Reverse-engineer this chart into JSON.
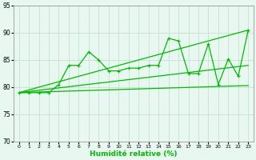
{
  "xlabel": "Humidité relative (%)",
  "bg_color": "#e8f8f0",
  "grid_color": "#bbddcc",
  "line_color": "#00bb00",
  "xlim": [
    -0.5,
    23.5
  ],
  "ylim": [
    70,
    95
  ],
  "yticks": [
    70,
    75,
    80,
    85,
    90,
    95
  ],
  "xticks": [
    0,
    1,
    2,
    3,
    4,
    5,
    6,
    7,
    8,
    9,
    10,
    11,
    12,
    13,
    14,
    15,
    16,
    17,
    18,
    19,
    20,
    21,
    22,
    23
  ],
  "line1_x": [
    0,
    1,
    2,
    3,
    4,
    5,
    6,
    7,
    8,
    9,
    10,
    11,
    12,
    13,
    14,
    15,
    16,
    17,
    18,
    19,
    20,
    21,
    22,
    23
  ],
  "line1_y": [
    79,
    79,
    79,
    79,
    80.5,
    84,
    84,
    86.5,
    85,
    83,
    83,
    83.5,
    83.5,
    84,
    84,
    89,
    88.5,
    82.5,
    82.5,
    88,
    80.5,
    85.2,
    82,
    90.5
  ],
  "line2_x": [
    0,
    23
  ],
  "line2_y": [
    79,
    90.5
  ],
  "line3_x": [
    0,
    23
  ],
  "line3_y": [
    79,
    84
  ],
  "line4_x": [
    0,
    23
  ],
  "line4_y": [
    79,
    80.3
  ],
  "markersize": 3
}
